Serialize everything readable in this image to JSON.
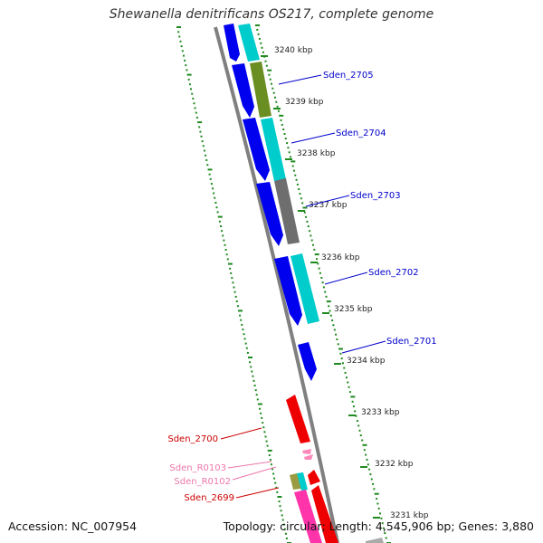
{
  "title": "Shewanella denitrificans OS217, complete genome",
  "accession": "Accession: NC_007954",
  "summary": "Topology: circular; Length: 4,545,906 bp; Genes: 3,880",
  "colors": {
    "backbone": "#808080",
    "dots": "#1f8a1f",
    "gene_label_blue": "#0000cc",
    "gene_label_red": "#cc0000",
    "gene_label_pink": "#ee77aa"
  },
  "ticks": [
    "3240 kbp",
    "3239 kbp",
    "3238 kbp",
    "3237 kbp",
    "3236 kbp",
    "3235 kbp",
    "3234 kbp",
    "3233 kbp",
    "3232 kbp",
    "3231 kbp"
  ],
  "gene_labels": [
    "Sden_2705",
    "Sden_2704",
    "Sden_2703",
    "Sden_2702",
    "Sden_2701",
    "Sden_2700",
    "Sden_R0103",
    "Sden_R0102",
    "Sden_2699"
  ]
}
